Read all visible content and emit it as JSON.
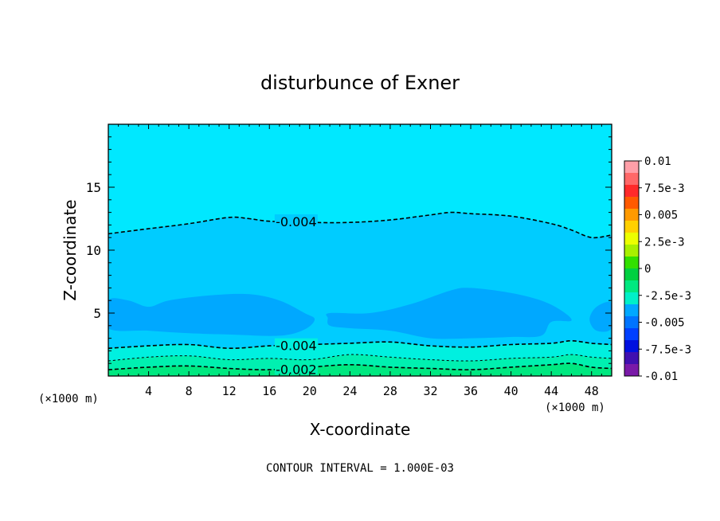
{
  "chart_data": {
    "type": "contour",
    "title": "disturbunce of Exner",
    "xlabel": "X-coordinate",
    "ylabel": "Z-coordinate",
    "x_unit_left": "(×1000 m)",
    "x_unit_right": "(×1000 m)",
    "footer": "CONTOUR INTERVAL = 1.000E-03",
    "xlim": [
      0,
      50
    ],
    "ylim": [
      0,
      20
    ],
    "x_ticks": [
      4,
      8,
      12,
      16,
      20,
      24,
      28,
      32,
      36,
      40,
      44,
      48
    ],
    "y_ticks": [
      5,
      10,
      15
    ],
    "contour_labels": [
      "-0.004",
      "-0.004",
      "-0.002"
    ],
    "colorbar": {
      "tick_labels": [
        "0.01",
        "7.5e-3",
        "0.005",
        "2.5e-3",
        "0",
        "-2.5e-3",
        "-0.005",
        "-7.5e-3",
        "-0.01"
      ],
      "colors": [
        "#ff9fa8",
        "#ff6868",
        "#ff2a2a",
        "#ff5a00",
        "#ff9a00",
        "#ffd000",
        "#ecff00",
        "#a8f000",
        "#32e000",
        "#00d040",
        "#00e880",
        "#00f0c8",
        "#00a8ff",
        "#0074ff",
        "#0040ff",
        "#0010e0",
        "#4010b0",
        "#7a1aa8"
      ]
    },
    "fill_colors": {
      "upper": "#00e8ff",
      "middle": "#00ccff",
      "core": "#00a8ff",
      "lower_1": "#00f0e0",
      "lower_2": "#00f0b0",
      "lower_3": "#00e880"
    },
    "contours": [
      {
        "level": -0.004,
        "label": "-0.004",
        "x": [
          0,
          4,
          8,
          12,
          14,
          16,
          20,
          24,
          28,
          32,
          34,
          36,
          40,
          44,
          46,
          48,
          50
        ],
        "z": [
          11.3,
          11.7,
          12.1,
          12.6,
          12.5,
          12.3,
          12.2,
          12.2,
          12.4,
          12.8,
          13.0,
          12.9,
          12.7,
          12.1,
          11.6,
          11.0,
          11.2
        ]
      },
      {
        "level": -0.004,
        "label": "-0.004",
        "x": [
          0,
          4,
          8,
          12,
          16,
          20,
          24,
          28,
          32,
          36,
          40,
          44,
          46,
          48,
          50
        ],
        "z": [
          2.2,
          2.4,
          2.5,
          2.2,
          2.4,
          2.5,
          2.6,
          2.7,
          2.4,
          2.3,
          2.5,
          2.6,
          2.8,
          2.6,
          2.5
        ]
      },
      {
        "level": -0.003,
        "label": "",
        "x": [
          0,
          4,
          8,
          12,
          16,
          20,
          24,
          28,
          32,
          36,
          40,
          44,
          46,
          48,
          50
        ],
        "z": [
          1.2,
          1.5,
          1.6,
          1.3,
          1.4,
          1.3,
          1.7,
          1.5,
          1.3,
          1.2,
          1.4,
          1.5,
          1.7,
          1.5,
          1.4
        ]
      },
      {
        "level": -0.002,
        "label": "-0.002",
        "x": [
          0,
          4,
          8,
          12,
          16,
          20,
          24,
          28,
          32,
          36,
          40,
          44,
          46,
          48,
          50
        ],
        "z": [
          0.5,
          0.7,
          0.8,
          0.6,
          0.5,
          0.7,
          0.9,
          0.7,
          0.6,
          0.5,
          0.7,
          0.9,
          1.0,
          0.7,
          0.6
        ]
      }
    ],
    "core_region": {
      "x": [
        0,
        2,
        6,
        10,
        14,
        18,
        20,
        19,
        16,
        12,
        8,
        4,
        0
      ],
      "z_top": 5.9,
      "note_shape": [
        [
          0,
          6.0
        ],
        [
          2,
          6.0
        ],
        [
          4,
          5.5
        ],
        [
          6,
          6.0
        ],
        [
          10,
          6.4
        ],
        [
          14,
          6.5
        ],
        [
          17,
          6.0
        ],
        [
          19.5,
          5.0
        ],
        [
          20.5,
          4.5
        ],
        [
          19.5,
          3.7
        ],
        [
          17,
          3.2
        ],
        [
          12,
          3.3
        ],
        [
          8,
          3.4
        ],
        [
          4,
          3.6
        ],
        [
          0,
          3.8
        ]
      ]
    },
    "core_region_2": [
      [
        22,
        5.0
      ],
      [
        26,
        5.0
      ],
      [
        30,
        5.7
      ],
      [
        34,
        6.8
      ],
      [
        36,
        7.0
      ],
      [
        40,
        6.6
      ],
      [
        43,
        6.0
      ],
      [
        45,
        5.2
      ],
      [
        46,
        4.4
      ],
      [
        44,
        4.3
      ],
      [
        43,
        3.2
      ],
      [
        40,
        3.1
      ],
      [
        36,
        3.0
      ],
      [
        32,
        3.0
      ],
      [
        28,
        3.6
      ],
      [
        24,
        3.8
      ],
      [
        22,
        4.0
      ],
      [
        21.8,
        4.6
      ]
    ],
    "core_region_3": [
      [
        48.5,
        5.5
      ],
      [
        50,
        5.8
      ],
      [
        50,
        3.8
      ],
      [
        48.5,
        3.6
      ],
      [
        47.8,
        4.5
      ]
    ]
  }
}
